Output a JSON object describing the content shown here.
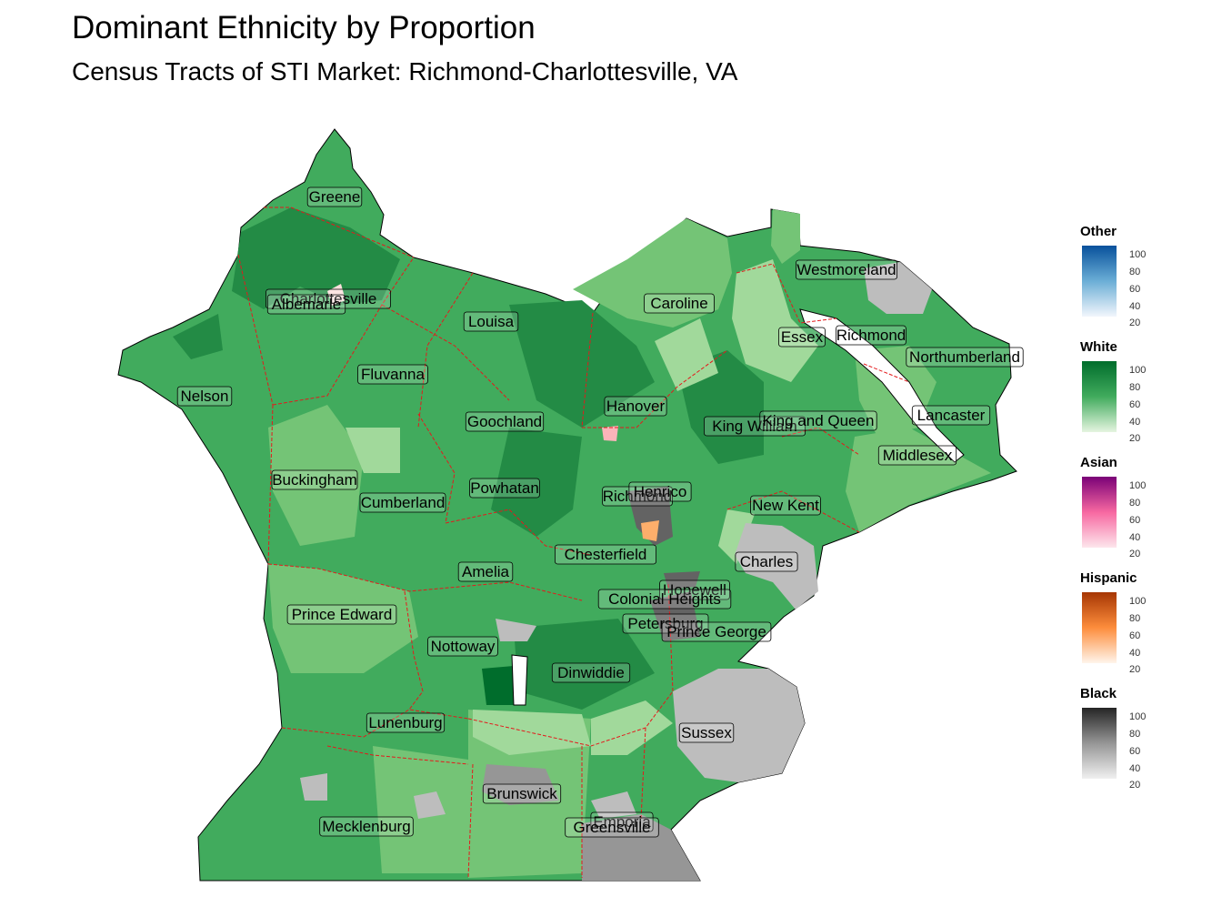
{
  "title": "Dominant Ethnicity by Proportion",
  "subtitle": "Census Tracts of STI Market: Richmond-Charlottesville, VA",
  "counties": [
    "Greene",
    "Charlottesville",
    "Albemarle",
    "Louisa",
    "Caroline",
    "Westmoreland",
    "Essex",
    "Richmond",
    "Northumberland",
    "Fluvanna",
    "Nelson",
    "Hanover",
    "Goochland",
    "King William",
    "King and Queen",
    "Lancaster",
    "Middlesex",
    "Buckingham",
    "Powhatan",
    "Richmond",
    "Henrico",
    "Cumberland",
    "New Kent",
    "Chesterfield",
    "Amelia",
    "Charles",
    "Hopewell",
    "Colonial Heights",
    "Prince Edward",
    "Petersburg",
    "Prince George",
    "Nottoway",
    "Dinwiddie",
    "Lunenburg",
    "Sussex",
    "Brunswick",
    "Emporia",
    "Mecklenburg",
    "Greensville"
  ],
  "legend": [
    {
      "title": "Other",
      "ticks": [
        "100",
        "80",
        "60",
        "40",
        "20"
      ],
      "low": "#f2f6fc",
      "high": "#08519c"
    },
    {
      "title": "White",
      "ticks": [
        "100",
        "80",
        "60",
        "40",
        "20"
      ],
      "low": "#e5f5e0",
      "high": "#006d2c"
    },
    {
      "title": "Asian",
      "ticks": [
        "100",
        "80",
        "60",
        "40",
        "20"
      ],
      "low": "#fde6ec",
      "high": "#7a0177"
    },
    {
      "title": "Hispanic",
      "ticks": [
        "100",
        "80",
        "60",
        "40",
        "20"
      ],
      "low": "#fff5eb",
      "high": "#a63603"
    },
    {
      "title": "Black",
      "ticks": [
        "100",
        "80",
        "60",
        "40",
        "20"
      ],
      "low": "#f0f0f0",
      "high": "#252525"
    }
  ],
  "colors": {
    "white_scale": [
      "#a1d99b",
      "#74c476",
      "#41ab5d",
      "#238b45",
      "#006d2c"
    ],
    "black_scale": [
      "#d9d9d9",
      "#bdbdbd",
      "#969696",
      "#636363"
    ],
    "county_border": "#e41a1c"
  }
}
